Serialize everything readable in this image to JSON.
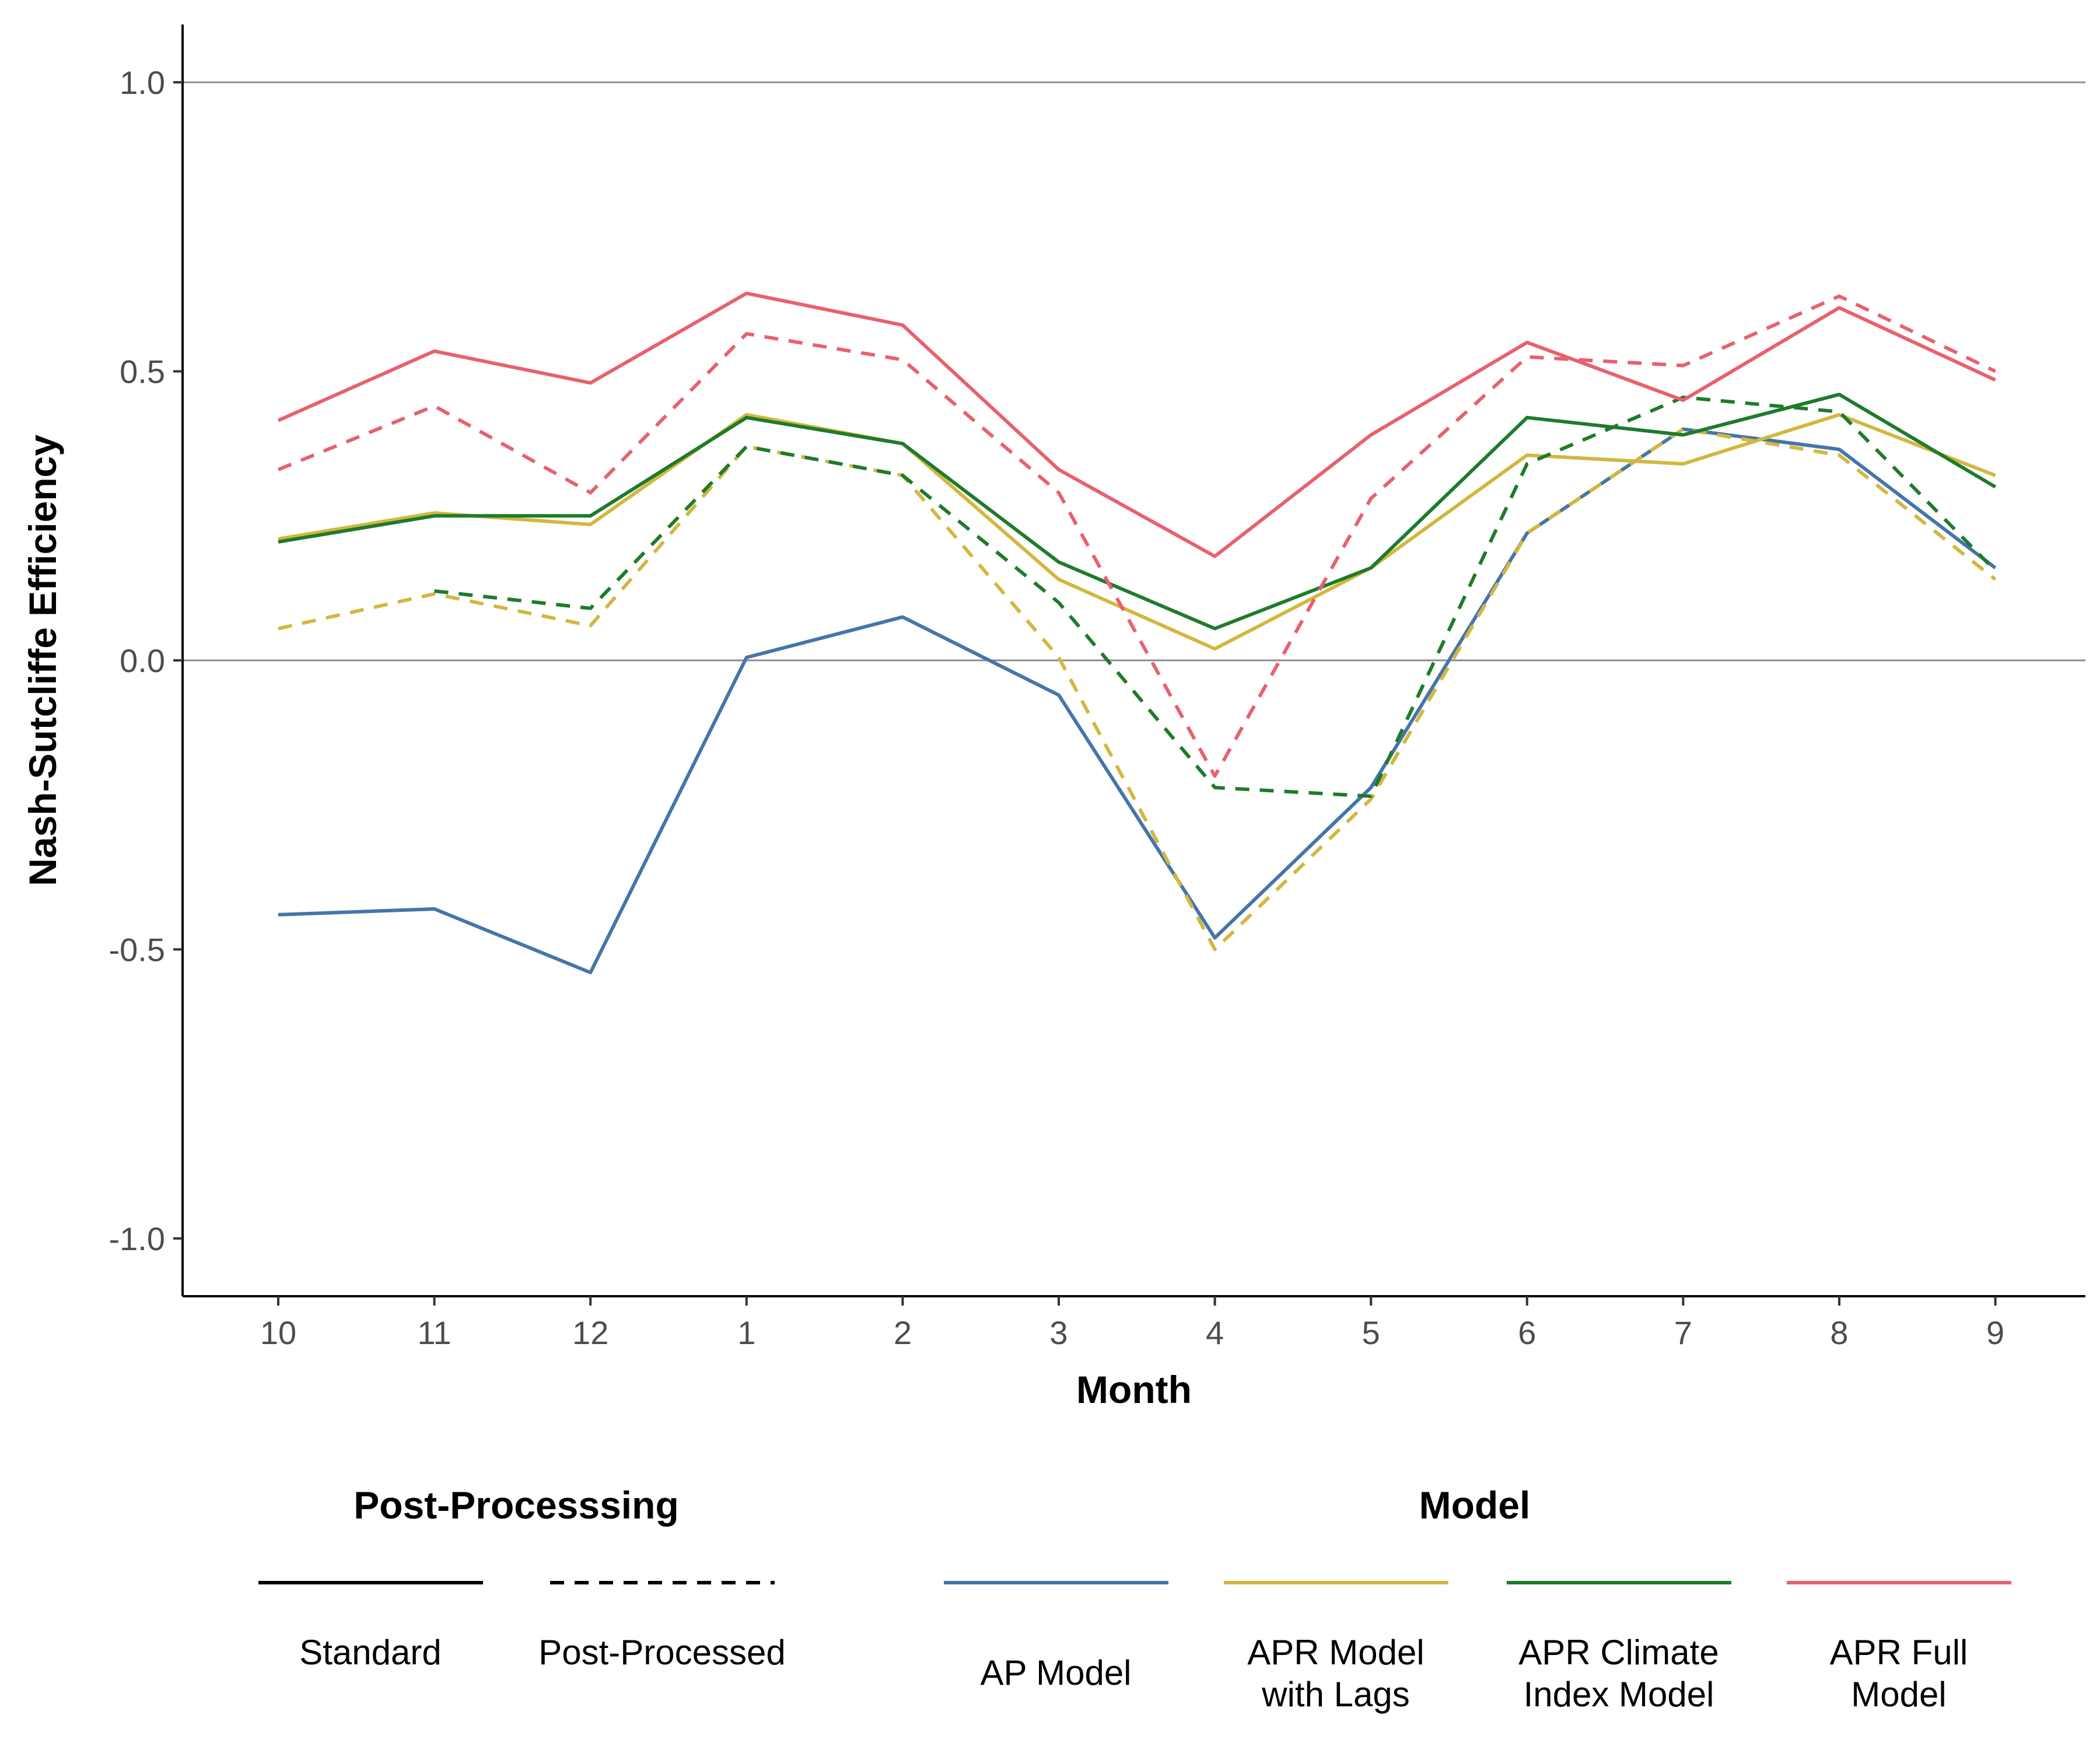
{
  "chart_data": {
    "type": "line",
    "xlabel": "Month",
    "ylabel": "Nash-Sutcliffe Efficiency",
    "categories": [
      "10",
      "11",
      "12",
      "1",
      "2",
      "3",
      "4",
      "5",
      "6",
      "7",
      "8",
      "9"
    ],
    "ylim": [
      -1.1,
      1.1
    ],
    "yticks": [
      "1.0",
      "0.5",
      "0.0",
      "-0.5",
      "-1.0"
    ],
    "ytick_values": [
      1.0,
      0.5,
      0.0,
      -0.5,
      -1.0
    ],
    "reference_lines": [
      0.0,
      1.0
    ],
    "grid": false,
    "legend_position": "bottom",
    "legend": {
      "linetype_title": "Post-Processsing",
      "linetype_items": [
        {
          "label": "Standard",
          "dash": "solid"
        },
        {
          "label": "Post-Processed",
          "dash": "dashed"
        }
      ],
      "color_title": "Model",
      "color_items": [
        {
          "label": "AP Model",
          "color": "#4575a9"
        },
        {
          "label": "APR Model with Lags",
          "color": "#d2b740"
        },
        {
          "label": "APR Climate Index Model",
          "color": "#1e7b2b"
        },
        {
          "label": "APR Full Model",
          "color": "#e8606f"
        }
      ]
    },
    "series": [
      {
        "model": "AP Model",
        "postprocessing": "Standard",
        "color": "#4575a9",
        "dash": "solid",
        "values": [
          -0.44,
          -0.43,
          -0.54,
          0.005,
          0.075,
          -0.06,
          -0.48,
          -0.22,
          0.22,
          0.4,
          0.365,
          0.16
        ]
      },
      {
        "model": "AP Model",
        "postprocessing": "Post-Processed",
        "color": "#4575a9",
        "dash": "dashed",
        "values": [
          null,
          null,
          null,
          null,
          null,
          null,
          null,
          null,
          null,
          null,
          null,
          null
        ]
      },
      {
        "model": "APR Model with Lags",
        "postprocessing": "Standard",
        "color": "#d2b740",
        "dash": "solid",
        "values": [
          0.21,
          0.255,
          0.235,
          0.425,
          0.375,
          0.14,
          0.02,
          0.16,
          0.355,
          0.34,
          0.425,
          0.32
        ]
      },
      {
        "model": "APR Model with Lags",
        "postprocessing": "Post-Processed",
        "color": "#d2b740",
        "dash": "dashed",
        "values": [
          0.055,
          0.115,
          0.06,
          0.37,
          0.32,
          0.005,
          -0.5,
          -0.24,
          0.22,
          0.4,
          0.355,
          0.14
        ]
      },
      {
        "model": "APR Climate Index Model",
        "postprocessing": "Standard",
        "color": "#1e7b2b",
        "dash": "solid",
        "values": [
          0.205,
          0.25,
          0.25,
          0.42,
          0.375,
          0.17,
          0.055,
          0.16,
          0.42,
          0.39,
          0.46,
          0.3
        ]
      },
      {
        "model": "APR Climate Index Model",
        "postprocessing": "Post-Processed",
        "color": "#1e7b2b",
        "dash": "dashed",
        "values": [
          null,
          0.12,
          0.09,
          0.37,
          0.32,
          0.1,
          -0.22,
          -0.235,
          0.34,
          0.455,
          0.43,
          0.155
        ]
      },
      {
        "model": "APR Full Model",
        "postprocessing": "Standard",
        "color": "#e8606f",
        "dash": "solid",
        "values": [
          0.415,
          0.535,
          0.48,
          0.635,
          0.58,
          0.33,
          0.18,
          0.39,
          0.55,
          0.45,
          0.61,
          0.485
        ]
      },
      {
        "model": "APR Full Model",
        "postprocessing": "Post-Processed",
        "color": "#e8606f",
        "dash": "dashed",
        "values": [
          0.33,
          0.44,
          0.29,
          0.565,
          0.52,
          0.29,
          -0.2,
          0.28,
          0.525,
          0.51,
          0.63,
          0.5
        ]
      }
    ]
  }
}
